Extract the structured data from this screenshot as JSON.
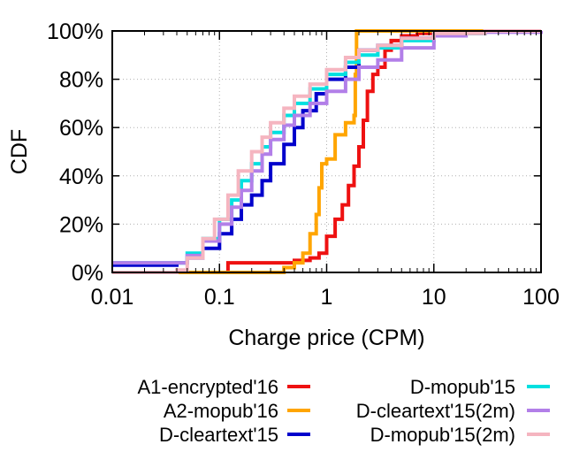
{
  "chart_data": {
    "type": "line",
    "subtype": "cdf",
    "title": "",
    "xlabel": "Charge price (CPM)",
    "ylabel": "CDF",
    "xscale": "log",
    "xlim": [
      0.01,
      100
    ],
    "ylim": [
      0,
      1
    ],
    "x_ticks": [
      0.01,
      0.1,
      1,
      10,
      100
    ],
    "x_tick_labels": [
      "0.01",
      "0.1",
      "1",
      "10",
      "100"
    ],
    "y_ticks": [
      0,
      0.2,
      0.4,
      0.6,
      0.8,
      1.0
    ],
    "y_tick_labels": [
      "0%",
      "20%",
      "40%",
      "60%",
      "80%",
      "100%"
    ],
    "grid": true,
    "legend_position": "bottom",
    "series": [
      {
        "name": "A1-encrypted'16",
        "color": "#ee1111",
        "x": [
          0.01,
          0.12,
          0.12,
          0.3,
          0.5,
          0.7,
          0.85,
          1.0,
          1.2,
          1.4,
          1.6,
          1.8,
          2.0,
          2.2,
          2.4,
          2.7,
          3.0,
          3.5,
          4.0,
          5.0,
          7.0,
          10,
          30,
          100
        ],
        "y": [
          0,
          0,
          0.04,
          0.04,
          0.05,
          0.06,
          0.08,
          0.15,
          0.22,
          0.28,
          0.36,
          0.44,
          0.52,
          0.63,
          0.75,
          0.82,
          0.85,
          0.92,
          0.96,
          0.98,
          0.99,
          0.995,
          1.0,
          1.0
        ]
      },
      {
        "name": "A2-mopub'16",
        "color": "#ffa500",
        "x": [
          0.01,
          0.3,
          0.4,
          0.5,
          0.6,
          0.7,
          0.8,
          0.85,
          0.9,
          1.0,
          1.2,
          1.5,
          1.8,
          1.85,
          1.9,
          2.0,
          3.0,
          10,
          100
        ],
        "y": [
          0,
          0,
          0.02,
          0.04,
          0.08,
          0.16,
          0.24,
          0.35,
          0.45,
          0.47,
          0.57,
          0.62,
          0.65,
          0.82,
          1.0,
          1.0,
          1.0,
          1.0,
          1.0
        ]
      },
      {
        "name": "D-cleartext'15",
        "color": "#0000cc",
        "x": [
          0.01,
          0.04,
          0.05,
          0.07,
          0.1,
          0.13,
          0.16,
          0.2,
          0.25,
          0.3,
          0.4,
          0.5,
          0.6,
          0.8,
          1.0,
          1.5,
          2.0,
          3.0,
          5.0,
          10,
          30,
          100
        ],
        "y": [
          0.03,
          0.04,
          0.06,
          0.1,
          0.16,
          0.22,
          0.28,
          0.32,
          0.38,
          0.45,
          0.53,
          0.6,
          0.67,
          0.74,
          0.8,
          0.85,
          0.92,
          0.94,
          0.97,
          0.99,
          1.0,
          1.0
        ]
      },
      {
        "name": "D-mopub'15",
        "color": "#00e0e0",
        "x": [
          0.01,
          0.04,
          0.05,
          0.07,
          0.1,
          0.13,
          0.16,
          0.2,
          0.25,
          0.3,
          0.4,
          0.5,
          0.7,
          1.0,
          1.5,
          2.0,
          3.0,
          5.0,
          10,
          30,
          100
        ],
        "y": [
          0.04,
          0.04,
          0.08,
          0.14,
          0.22,
          0.3,
          0.38,
          0.45,
          0.52,
          0.58,
          0.65,
          0.7,
          0.76,
          0.82,
          0.87,
          0.9,
          0.93,
          0.96,
          0.99,
          1.0,
          1.0
        ]
      },
      {
        "name": "D-cleartext'15(2m)",
        "color": "#b27fe8",
        "x": [
          0.01,
          0.04,
          0.05,
          0.07,
          0.1,
          0.13,
          0.16,
          0.2,
          0.25,
          0.3,
          0.4,
          0.5,
          0.7,
          1.0,
          1.5,
          2.0,
          3.0,
          5.0,
          10,
          20,
          100
        ],
        "y": [
          0.04,
          0.04,
          0.07,
          0.13,
          0.2,
          0.27,
          0.34,
          0.42,
          0.49,
          0.55,
          0.61,
          0.65,
          0.7,
          0.75,
          0.8,
          0.85,
          0.88,
          0.93,
          0.98,
          0.995,
          1.0
        ]
      },
      {
        "name": "D-mopub'15(2m)",
        "color": "#f5b5c0",
        "x": [
          0.01,
          0.04,
          0.05,
          0.07,
          0.09,
          0.12,
          0.15,
          0.2,
          0.25,
          0.3,
          0.4,
          0.5,
          0.7,
          1.0,
          1.5,
          2.0,
          3.0,
          5.0,
          10,
          30,
          100
        ],
        "y": [
          0,
          0.01,
          0.06,
          0.14,
          0.22,
          0.32,
          0.42,
          0.5,
          0.56,
          0.62,
          0.68,
          0.73,
          0.78,
          0.84,
          0.89,
          0.92,
          0.94,
          0.97,
          0.99,
          1.0,
          1.0
        ]
      }
    ]
  }
}
